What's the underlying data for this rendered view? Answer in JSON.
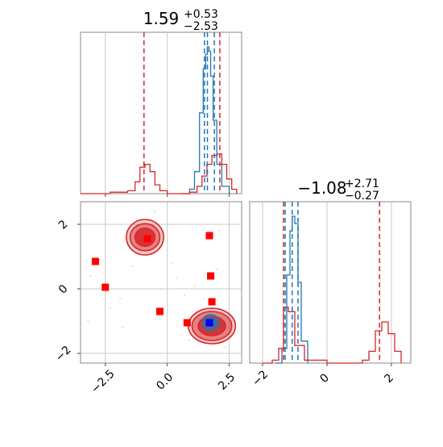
{
  "chart_data": {
    "type": "corner",
    "panels": [
      {
        "id": "p1_hist",
        "kind": "hist1d",
        "param_index": 0,
        "title": {
          "main": "1.59",
          "sup": "+0.53",
          "sub": "−2.53"
        },
        "xlim": [
          -3.5,
          3.0
        ],
        "x_gridlines": [
          -2.5,
          0.0,
          2.5
        ],
        "series": [
          {
            "name": "",
            "color": "#1f77b4",
            "x": [
              0.6,
              0.9,
              1.1,
              1.3,
              1.45,
              1.55,
              1.62,
              1.68,
              1.75,
              1.85,
              2.0,
              2.2,
              2.5
            ],
            "y": [
              0.0,
              0.03,
              0.15,
              0.55,
              0.85,
              0.95,
              1.0,
              0.97,
              0.8,
              0.5,
              0.2,
              0.05,
              0.0
            ],
            "dashed": [
              1.5,
              1.62,
              1.9
            ]
          },
          {
            "name": "",
            "color": "#d62728",
            "x": [
              -3.5,
              -2.3,
              -1.6,
              -1.3,
              -1.1,
              -0.9,
              -0.7,
              -0.5,
              -0.3,
              0.0,
              0.9,
              1.2,
              1.4,
              1.6,
              1.8,
              2.0,
              2.2,
              2.4,
              2.6,
              2.8
            ],
            "y": [
              0.0,
              0.01,
              0.02,
              0.08,
              0.18,
              0.2,
              0.15,
              0.06,
              0.02,
              0.0,
              0.01,
              0.05,
              0.12,
              0.2,
              0.26,
              0.27,
              0.2,
              0.1,
              0.03,
              0.0
            ],
            "dashed": [
              -0.94,
              2.12
            ]
          }
        ]
      },
      {
        "id": "p2_hist",
        "kind": "hist1d",
        "param_index": 1,
        "title": {
          "main": "−1.08",
          "sup": "+2.71",
          "sub": "−0.27"
        },
        "xlim": [
          -2.4,
          2.6
        ],
        "x_gridlines": [
          -2,
          0,
          2
        ],
        "x_ticks": [
          -2,
          0,
          2
        ],
        "x_tick_labels": [
          "−2",
          "0",
          "2"
        ],
        "series": [
          {
            "name": "",
            "color": "#1f77b4",
            "x": [
              -1.6,
              -1.4,
              -1.25,
              -1.15,
              -1.08,
              -1.0,
              -0.9,
              -0.8,
              -0.6
            ],
            "y": [
              0.0,
              0.1,
              0.6,
              0.9,
              1.0,
              0.95,
              0.55,
              0.15,
              0.0
            ],
            "dashed": [
              -1.3,
              -1.08,
              -0.9
            ]
          },
          {
            "name": "",
            "color": "#d62728",
            "x": [
              -2.0,
              -1.7,
              -1.5,
              -1.35,
              -1.2,
              -1.0,
              -0.7,
              0.0,
              1.1,
              1.3,
              1.5,
              1.7,
              1.9,
              2.1,
              2.3
            ],
            "y": [
              0.0,
              0.02,
              0.1,
              0.38,
              0.35,
              0.12,
              0.02,
              0.0,
              0.02,
              0.08,
              0.22,
              0.28,
              0.2,
              0.08,
              0.0
            ],
            "dashed": [
              -1.35,
              1.63
            ]
          }
        ]
      },
      {
        "id": "p3_2d",
        "kind": "hist2d",
        "xlim": [
          -3.5,
          3.0
        ],
        "ylim": [
          -2.3,
          2.7
        ],
        "x_ticks": [
          -2.5,
          0.0,
          2.5
        ],
        "x_tick_labels": [
          "−2.5",
          "0.0",
          "2.5"
        ],
        "y_ticks": [
          -2,
          0,
          2
        ],
        "y_tick_labels": [
          "−2",
          "0",
          "2"
        ],
        "x_gridlines": [
          -2.5,
          0.0,
          2.5
        ],
        "y_gridlines": [
          -2,
          0,
          2
        ],
        "density_modes": [
          {
            "color": "#d62728",
            "x": -0.9,
            "y": 1.6,
            "level_radii": [
              [
                0.75,
                0.55
              ],
              [
                0.6,
                0.42
              ],
              [
                0.4,
                0.28
              ]
            ]
          },
          {
            "color": "#d62728",
            "x": 1.8,
            "y": -1.15,
            "level_radii": [
              [
                0.95,
                0.55
              ],
              [
                0.8,
                0.45
              ],
              [
                0.55,
                0.3
              ]
            ]
          },
          {
            "color": "#1f77b4",
            "x": 1.75,
            "y": -1.05,
            "level_radii": [
              [
                0.35,
                0.25
              ],
              [
                0.2,
                0.13
              ]
            ]
          }
        ],
        "markers_red": [
          [
            -0.8,
            1.55
          ],
          [
            1.7,
            1.65
          ],
          [
            -2.9,
            0.85
          ],
          [
            -2.5,
            0.05
          ],
          [
            1.75,
            0.4
          ],
          [
            -0.3,
            -0.7
          ],
          [
            1.8,
            -0.4
          ],
          [
            0.8,
            -1.05
          ]
        ],
        "markers_blue": [
          [
            1.7,
            -1.05
          ]
        ],
        "scatter_points": [
          [
            -3.1,
            0.4
          ],
          [
            -2.7,
            0.9
          ],
          [
            -2.3,
            -0.6
          ],
          [
            -1.8,
            -1.2
          ],
          [
            -1.4,
            0.7
          ],
          [
            -0.5,
            2.4
          ],
          [
            0.4,
            0.35
          ],
          [
            0.7,
            -0.2
          ],
          [
            1.1,
            0.1
          ],
          [
            1.5,
            -0.3
          ],
          [
            2.0,
            0.6
          ],
          [
            2.3,
            -1.8
          ],
          [
            2.1,
            1.8
          ],
          [
            -1.9,
            -0.3
          ],
          [
            -0.9,
            -2.0
          ],
          [
            0.2,
            0.8
          ],
          [
            -3.2,
            -1.0
          ],
          [
            1.35,
            -1.5
          ],
          [
            0.9,
            -1.6
          ],
          [
            2.6,
            -1.0
          ]
        ]
      }
    ]
  }
}
